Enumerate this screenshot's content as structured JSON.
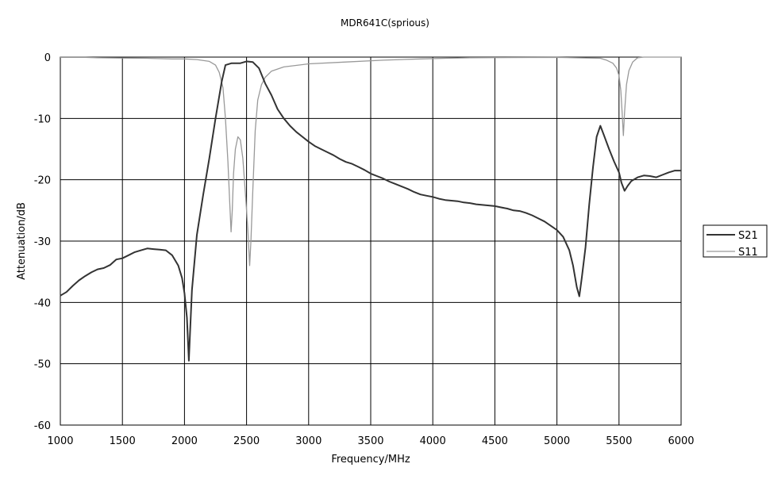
{
  "chart_data": {
    "type": "line",
    "title": "MDR641C(sprious)",
    "xlabel": "Frequency/MHz",
    "ylabel": "Attenuation/dB",
    "xlim": [
      1000,
      6000
    ],
    "ylim": [
      -60,
      0
    ],
    "x_ticks": [
      1000,
      1500,
      2000,
      2500,
      3000,
      3500,
      4000,
      4500,
      5000,
      5500,
      6000
    ],
    "y_ticks": [
      0,
      -10,
      -20,
      -30,
      -40,
      -50,
      -60
    ],
    "x_tick_labels": [
      "1000",
      "1500",
      "2000",
      "2500",
      "3000",
      "3500",
      "4000",
      "4500",
      "5000",
      "5500",
      "6000"
    ],
    "y_tick_labels": [
      "0",
      "-10",
      "-20",
      "-30",
      "-40",
      "-50",
      "-60"
    ],
    "grid": true,
    "legend_position": "right",
    "series": [
      {
        "name": "S21",
        "color": "#333333",
        "points": [
          [
            1000,
            -38.9
          ],
          [
            1050,
            -38.3
          ],
          [
            1100,
            -37.3
          ],
          [
            1150,
            -36.4
          ],
          [
            1200,
            -35.7
          ],
          [
            1250,
            -35.1
          ],
          [
            1300,
            -34.6
          ],
          [
            1350,
            -34.4
          ],
          [
            1400,
            -33.9
          ],
          [
            1450,
            -33.0
          ],
          [
            1500,
            -32.8
          ],
          [
            1550,
            -32.3
          ],
          [
            1600,
            -31.8
          ],
          [
            1650,
            -31.5
          ],
          [
            1700,
            -31.2
          ],
          [
            1750,
            -31.3
          ],
          [
            1800,
            -31.4
          ],
          [
            1850,
            -31.5
          ],
          [
            1900,
            -32.3
          ],
          [
            1950,
            -34.0
          ],
          [
            1980,
            -36.0
          ],
          [
            2000,
            -38.5
          ],
          [
            2020,
            -42.5
          ],
          [
            2035,
            -49.5
          ],
          [
            2045,
            -45.0
          ],
          [
            2060,
            -38.0
          ],
          [
            2080,
            -33.5
          ],
          [
            2100,
            -29.0
          ],
          [
            2150,
            -22.5
          ],
          [
            2200,
            -16.5
          ],
          [
            2250,
            -10.0
          ],
          [
            2300,
            -4.0
          ],
          [
            2330,
            -1.3
          ],
          [
            2380,
            -1.0
          ],
          [
            2450,
            -1.0
          ],
          [
            2500,
            -0.7
          ],
          [
            2550,
            -0.8
          ],
          [
            2600,
            -1.8
          ],
          [
            2650,
            -4.3
          ],
          [
            2700,
            -6.2
          ],
          [
            2750,
            -8.5
          ],
          [
            2800,
            -10.0
          ],
          [
            2850,
            -11.2
          ],
          [
            2900,
            -12.2
          ],
          [
            2950,
            -13.0
          ],
          [
            3000,
            -13.8
          ],
          [
            3050,
            -14.5
          ],
          [
            3100,
            -15.0
          ],
          [
            3150,
            -15.5
          ],
          [
            3200,
            -16.0
          ],
          [
            3250,
            -16.6
          ],
          [
            3300,
            -17.1
          ],
          [
            3350,
            -17.4
          ],
          [
            3400,
            -17.9
          ],
          [
            3450,
            -18.4
          ],
          [
            3500,
            -19.0
          ],
          [
            3550,
            -19.4
          ],
          [
            3600,
            -19.8
          ],
          [
            3650,
            -20.3
          ],
          [
            3700,
            -20.7
          ],
          [
            3750,
            -21.1
          ],
          [
            3800,
            -21.5
          ],
          [
            3850,
            -22.0
          ],
          [
            3900,
            -22.4
          ],
          [
            3950,
            -22.6
          ],
          [
            4000,
            -22.8
          ],
          [
            4050,
            -23.1
          ],
          [
            4100,
            -23.3
          ],
          [
            4150,
            -23.4
          ],
          [
            4200,
            -23.5
          ],
          [
            4250,
            -23.7
          ],
          [
            4300,
            -23.8
          ],
          [
            4350,
            -24.0
          ],
          [
            4400,
            -24.1
          ],
          [
            4450,
            -24.2
          ],
          [
            4500,
            -24.3
          ],
          [
            4550,
            -24.5
          ],
          [
            4600,
            -24.7
          ],
          [
            4650,
            -25.0
          ],
          [
            4700,
            -25.1
          ],
          [
            4750,
            -25.4
          ],
          [
            4800,
            -25.8
          ],
          [
            4850,
            -26.3
          ],
          [
            4900,
            -26.8
          ],
          [
            4950,
            -27.5
          ],
          [
            5000,
            -28.2
          ],
          [
            5050,
            -29.3
          ],
          [
            5100,
            -31.5
          ],
          [
            5130,
            -34.0
          ],
          [
            5160,
            -37.5
          ],
          [
            5180,
            -39.0
          ],
          [
            5200,
            -36.0
          ],
          [
            5230,
            -31.0
          ],
          [
            5260,
            -24.0
          ],
          [
            5290,
            -18.0
          ],
          [
            5320,
            -13.0
          ],
          [
            5350,
            -11.2
          ],
          [
            5380,
            -12.8
          ],
          [
            5420,
            -15.0
          ],
          [
            5460,
            -17.0
          ],
          [
            5500,
            -18.8
          ],
          [
            5520,
            -20.5
          ],
          [
            5545,
            -21.8
          ],
          [
            5570,
            -21.0
          ],
          [
            5600,
            -20.2
          ],
          [
            5650,
            -19.6
          ],
          [
            5700,
            -19.3
          ],
          [
            5750,
            -19.4
          ],
          [
            5800,
            -19.6
          ],
          [
            5850,
            -19.2
          ],
          [
            5900,
            -18.8
          ],
          [
            5950,
            -18.5
          ],
          [
            6000,
            -18.5
          ]
        ]
      },
      {
        "name": "S11",
        "color": "#999999",
        "points": [
          [
            1000,
            -0.05
          ],
          [
            1200,
            -0.05
          ],
          [
            1300,
            -0.1
          ],
          [
            1500,
            -0.15
          ],
          [
            1700,
            -0.2
          ],
          [
            1900,
            -0.3
          ],
          [
            2000,
            -0.3
          ],
          [
            2100,
            -0.4
          ],
          [
            2200,
            -0.7
          ],
          [
            2250,
            -1.3
          ],
          [
            2280,
            -2.5
          ],
          [
            2310,
            -5.0
          ],
          [
            2330,
            -10.0
          ],
          [
            2350,
            -17.0
          ],
          [
            2365,
            -24.0
          ],
          [
            2375,
            -28.5
          ],
          [
            2385,
            -25.0
          ],
          [
            2395,
            -19.0
          ],
          [
            2410,
            -15.0
          ],
          [
            2430,
            -13.0
          ],
          [
            2450,
            -13.5
          ],
          [
            2470,
            -16.5
          ],
          [
            2490,
            -22.0
          ],
          [
            2510,
            -28.0
          ],
          [
            2525,
            -34.0
          ],
          [
            2535,
            -30.0
          ],
          [
            2550,
            -22.0
          ],
          [
            2570,
            -12.0
          ],
          [
            2590,
            -7.0
          ],
          [
            2620,
            -4.5
          ],
          [
            2650,
            -3.3
          ],
          [
            2700,
            -2.3
          ],
          [
            2800,
            -1.6
          ],
          [
            3000,
            -1.1
          ],
          [
            3300,
            -0.8
          ],
          [
            3600,
            -0.5
          ],
          [
            3900,
            -0.3
          ],
          [
            4100,
            -0.2
          ],
          [
            4300,
            -0.1
          ],
          [
            5000,
            -0.05
          ],
          [
            5350,
            -0.2
          ],
          [
            5400,
            -0.5
          ],
          [
            5450,
            -1.0
          ],
          [
            5480,
            -1.8
          ],
          [
            5500,
            -3.0
          ],
          [
            5515,
            -5.5
          ],
          [
            5525,
            -9.0
          ],
          [
            5535,
            -12.8
          ],
          [
            5545,
            -9.0
          ],
          [
            5560,
            -4.5
          ],
          [
            5580,
            -2.2
          ],
          [
            5610,
            -0.8
          ],
          [
            5650,
            -0.1
          ],
          [
            5700,
            0.0
          ],
          [
            6000,
            0.0
          ]
        ]
      }
    ]
  }
}
